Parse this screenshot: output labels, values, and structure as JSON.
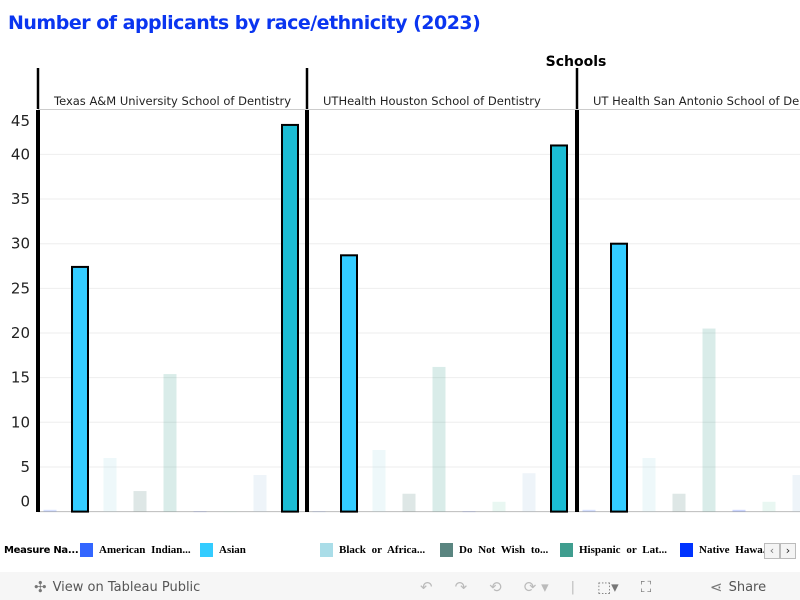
{
  "title": "Number of applicants by race/ethnicity (2023)",
  "chart_data": {
    "type": "bar",
    "title": "Number of applicants by race/ethnicity (2023)",
    "column_header": "Schools",
    "panels": [
      "Texas A&M University School of Dentistry",
      "UTHealth Houston School of Dentistry",
      "UT Health San Antonio School of Dentistry"
    ],
    "yticks": [
      0,
      5,
      10,
      15,
      20,
      25,
      30,
      35,
      40,
      45
    ],
    "ylim": [
      0,
      45
    ],
    "grid": true,
    "legend_placement": "bottom",
    "series": [
      {
        "name": "American Indian...",
        "color": "#3366ff",
        "highlighted": false,
        "values": [
          0.2,
          0,
          0.2
        ]
      },
      {
        "name": "Asian",
        "color": "#33ccff",
        "highlighted": true,
        "values": [
          27.4,
          28.7,
          30.0
        ]
      },
      {
        "name": "Black or Africa...",
        "color": "#aadde8",
        "highlighted": false,
        "values": [
          6.0,
          6.9,
          6.0
        ]
      },
      {
        "name": "Do Not Wish to...",
        "color": "#5a8580",
        "highlighted": false,
        "values": [
          2.3,
          2.0,
          2.0
        ]
      },
      {
        "name": "Hispanic or Lat...",
        "color": "#3f9e8f",
        "highlighted": false,
        "values": [
          15.4,
          16.2,
          20.5
        ]
      },
      {
        "name": "Native Hawa...",
        "color": "#0033ff",
        "highlighted": false,
        "values": [
          0,
          0,
          0.2
        ]
      },
      {
        "color": "#8fd6bd",
        "highlighted": false,
        "values": [
          0,
          1.1,
          1.1
        ]
      },
      {
        "color": "#a9c8e0",
        "highlighted": false,
        "values": [
          4.1,
          4.3,
          4.1
        ]
      },
      {
        "color": "#1bbcd4",
        "highlighted": true,
        "values": [
          43.3,
          41.0,
          null
        ]
      }
    ]
  },
  "legend": {
    "title": "Measure Na...",
    "scroll_left": "‹",
    "scroll_right": "›"
  },
  "toolbar": {
    "view_label": "View on Tableau Public",
    "share_label": "Share"
  }
}
